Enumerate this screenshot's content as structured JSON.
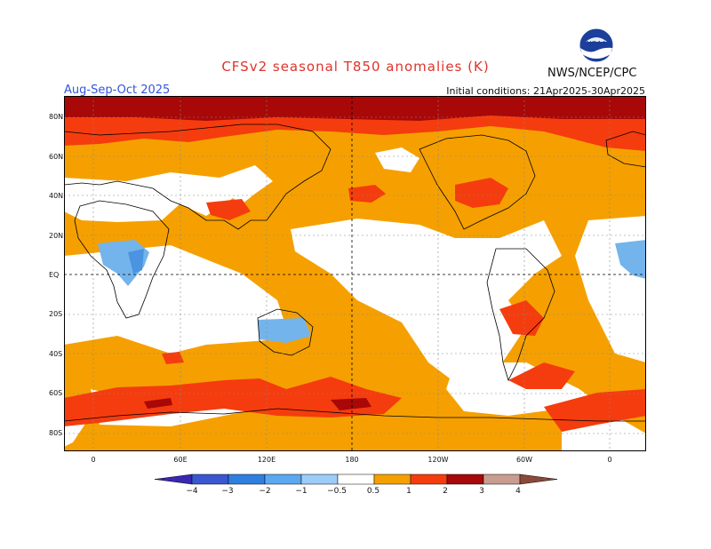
{
  "header": {
    "title": "CFSv2 seasonal T850 anomalies (K)",
    "agency": "NWS/NCEP/CPC",
    "season": "Aug-Sep-Oct 2025",
    "initial_conditions": "Initial conditions: 21Apr2025-30Apr2025",
    "logo_text": "NOAA"
  },
  "axes": {
    "lat_labels": [
      "80N",
      "60N",
      "40N",
      "20N",
      "EQ",
      "20S",
      "40S",
      "60S",
      "80S"
    ],
    "lon_labels": [
      "0",
      "60E",
      "120E",
      "180",
      "120W",
      "60W",
      "0"
    ]
  },
  "colorbar": {
    "labels": [
      "−4",
      "−3",
      "−2",
      "−1",
      "−0.5",
      "0.5",
      "1",
      "2",
      "3",
      "4"
    ],
    "colors": [
      "#3a28b0",
      "#3b57d0",
      "#2f7fe0",
      "#5aa8f0",
      "#9cccf8",
      "#ffffff",
      "#f5a000",
      "#f53c0e",
      "#a80808",
      "#c89c90",
      "#8a4a3a"
    ]
  },
  "map_colors": {
    "weak_warm": "#f5a000",
    "warm": "#f53c0e",
    "strong_warm": "#a80808",
    "very_strong_warm": "#7a1010",
    "cool": "#74b4ec",
    "cool2": "#4a94e0",
    "neutral": "#ffffff"
  }
}
